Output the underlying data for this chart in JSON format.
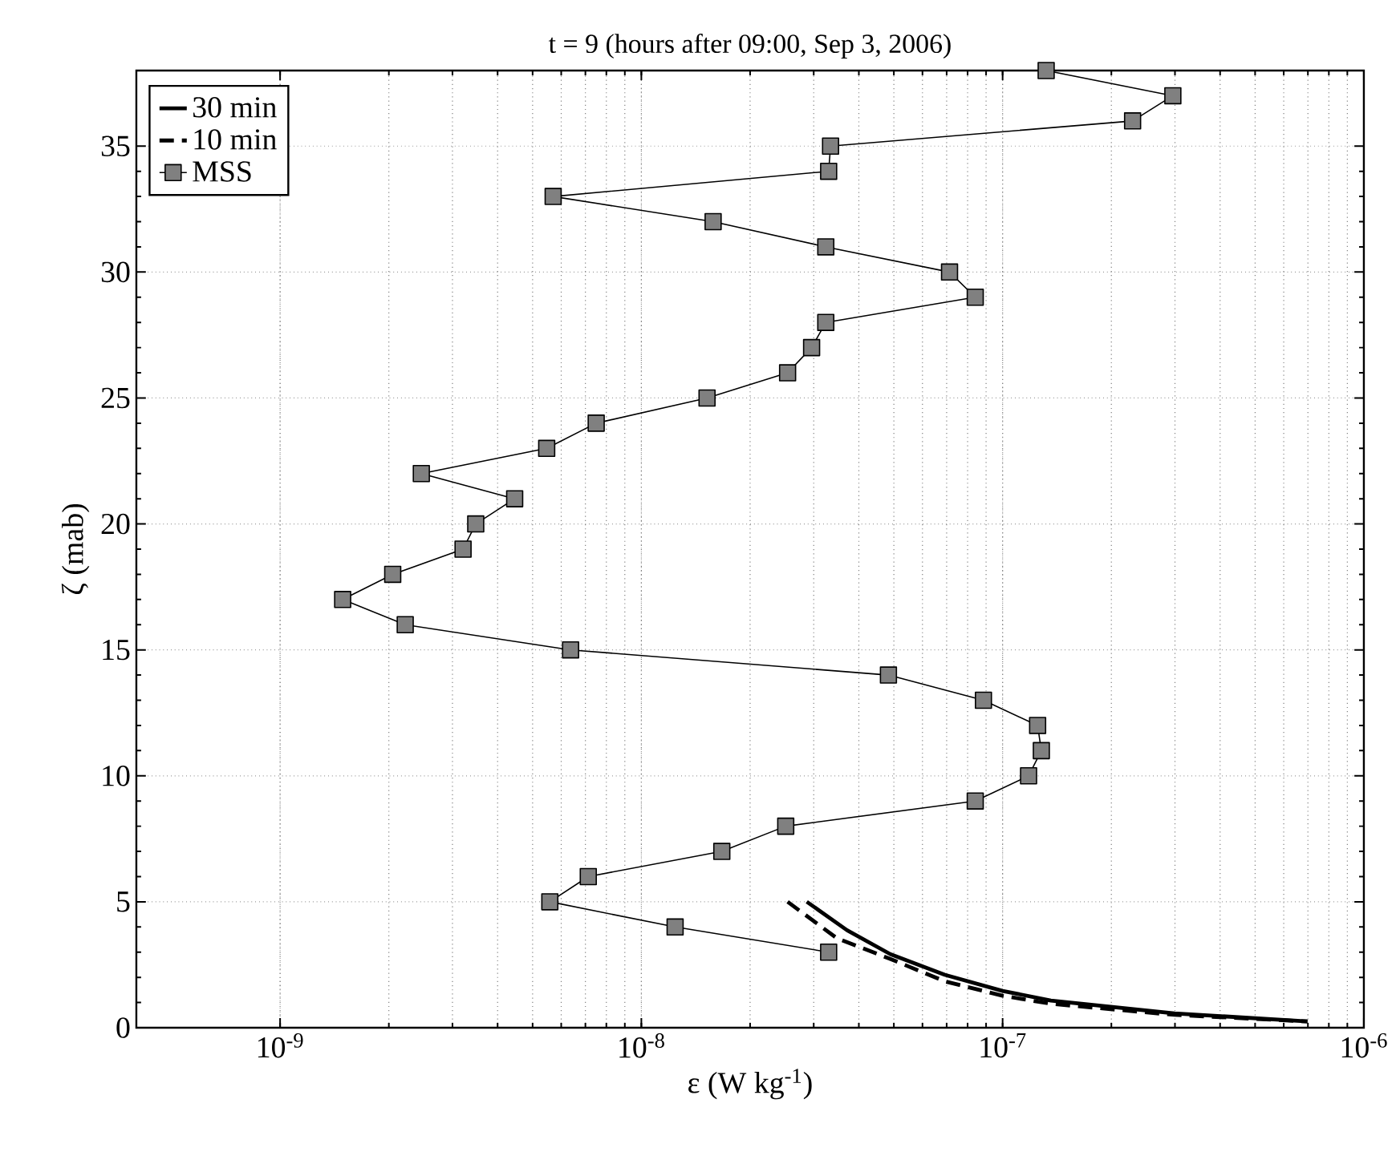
{
  "chart_data": {
    "type": "line",
    "title": "t = 9 (hours after 09:00, Sep 3, 2006)",
    "xlabel": "ε (W kg$^{-1}$)",
    "ylabel": "ζ (mab)",
    "log": "x",
    "grid": true,
    "legend": "top left",
    "xlim": [
      4e-10,
      1e-06
    ],
    "ylim": [
      0,
      38
    ],
    "xticks": [
      {
        "value": 1e-09,
        "label": "10$^{-9}$"
      },
      {
        "value": 1e-08,
        "label": "10$^{-8}$"
      },
      {
        "value": 1e-07,
        "label": "10$^{-7}$"
      },
      {
        "value": 1e-06,
        "label": "10$^{-6}$"
      }
    ],
    "yticks": [
      0,
      5,
      10,
      15,
      20,
      25,
      30,
      35
    ],
    "series": [
      {
        "name": "30 min",
        "color": "#000000",
        "line_style": "solid",
        "marker": "none",
        "x": [
          2.87e-08,
          3.71e-08,
          4.89e-08,
          6.92e-08,
          1e-07,
          1.36e-07,
          1.99e-07,
          2.99e-07,
          6.98e-07
        ],
        "values": [
          5.0,
          3.87,
          2.92,
          2.1,
          1.46,
          1.08,
          0.83,
          0.57,
          0.25
        ]
      },
      {
        "name": "10 min",
        "color": "#000000",
        "line_style": "dashed",
        "marker": "none",
        "x": [
          2.54e-08,
          3.48e-08,
          4.89e-08,
          6.92e-08,
          1e-07,
          1.36e-07,
          2.99e-07,
          6.98e-07
        ],
        "values": [
          5.0,
          3.55,
          2.73,
          1.84,
          1.27,
          0.95,
          0.51,
          0.25
        ]
      },
      {
        "name": "MSS",
        "color": "#808080",
        "line_style": "solid",
        "marker": "square",
        "x": [
          1.32e-07,
          2.96e-07,
          2.29e-07,
          3.34e-08,
          3.3e-08,
          5.7e-09,
          1.58e-08,
          3.24e-08,
          7.13e-08,
          8.4e-08,
          3.24e-08,
          2.96e-08,
          2.54e-08,
          1.52e-08,
          7.5e-09,
          5.47e-09,
          2.46e-09,
          4.46e-09,
          3.48e-09,
          3.21e-09,
          2.05e-09,
          1.49e-09,
          2.22e-09,
          6.37e-09,
          4.83e-08,
          8.85e-08,
          1.25e-07,
          1.28e-07,
          1.18e-07,
          8.4e-08,
          2.51e-08,
          1.67e-08,
          7.13e-09,
          5.58e-09,
          1.24e-08,
          3.3e-08
        ],
        "values": [
          38,
          37,
          36,
          35,
          34,
          33,
          32,
          31,
          30,
          29,
          28,
          27,
          26,
          25,
          24,
          23,
          22,
          21,
          20,
          19,
          18,
          17,
          16,
          15,
          14,
          13,
          12,
          11,
          10,
          9,
          8,
          7,
          6,
          5,
          4,
          3
        ]
      }
    ]
  }
}
